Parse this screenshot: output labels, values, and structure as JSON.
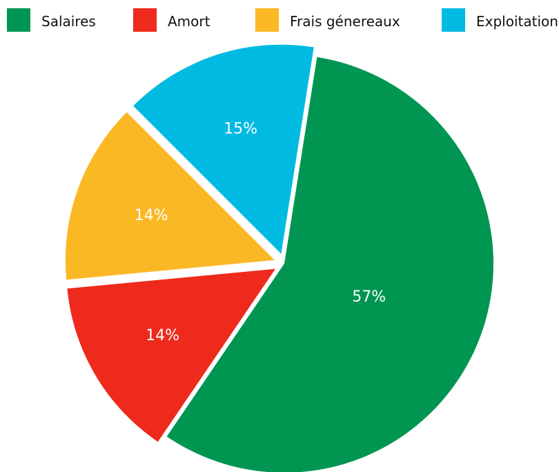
{
  "chart_data": {
    "type": "pie",
    "title": "",
    "legend_position": "top",
    "labels": [
      "Salaires",
      "Amort",
      "Frais génereaux",
      "Exploitation"
    ],
    "values": [
      57,
      14,
      14,
      15
    ],
    "value_labels": [
      "57%",
      "14%",
      "14%",
      "15%"
    ],
    "colors": [
      "#009551",
      "#EE2A1C",
      "#FBB825",
      "#00BAE1"
    ],
    "exploded": true
  }
}
